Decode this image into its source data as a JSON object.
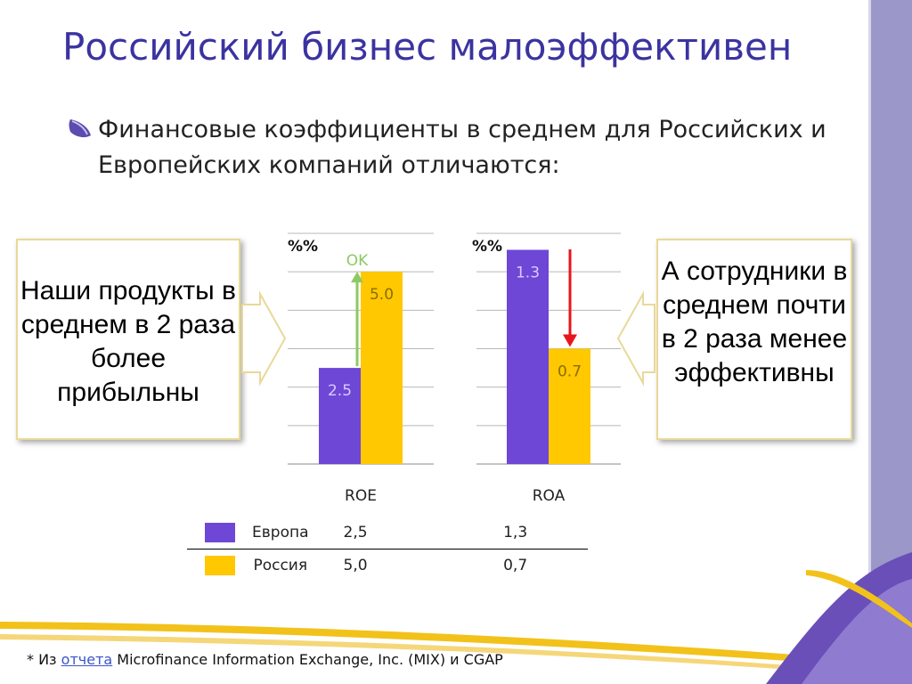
{
  "slide": {
    "title": "Российский бизнес малоэффективен",
    "subtitle": "Финансовые коэффициенты в среднем для Российских и Европейских компаний отличаются:",
    "callout_left": "Наши продукты в среднем в 2 раза более прибыльны",
    "callout_right": "А сотрудники в среднем почти в 2 раза менее эффективны",
    "footnote_prefix": "* Из ",
    "footnote_link": "отчета",
    "footnote_suffix": " Microfinance Information Exchange, Inc. (MIX) и CGAP"
  },
  "colors": {
    "title": "#3b33a0",
    "europe": "#6e47d6",
    "russia": "#ffc800",
    "ok_arrow": "#8cc964",
    "down_arrow": "#e8161b",
    "stripe": "#9b97c9"
  },
  "chart_data": [
    {
      "type": "bar",
      "unit_label": "%%",
      "category": "ROE",
      "ylim": [
        0,
        6
      ],
      "series": [
        {
          "name": "Европа",
          "values": [
            2.5
          ],
          "label": "2.5"
        },
        {
          "name": "Россия",
          "values": [
            5.0
          ],
          "label": "5.0"
        }
      ],
      "annotation": "OK",
      "grid": true
    },
    {
      "type": "bar",
      "unit_label": "%%",
      "category": "ROA",
      "ylim": [
        0,
        1.4
      ],
      "series": [
        {
          "name": "Европа",
          "values": [
            1.3
          ],
          "label": "1.3"
        },
        {
          "name": "Россия",
          "values": [
            0.7
          ],
          "label": "0.7"
        }
      ],
      "grid": true
    }
  ],
  "table": {
    "rows": [
      {
        "name": "Европа",
        "roe": "2,5",
        "roa": "1,3"
      },
      {
        "name": "Россия",
        "roe": "5,0",
        "roa": "0,7"
      }
    ]
  }
}
